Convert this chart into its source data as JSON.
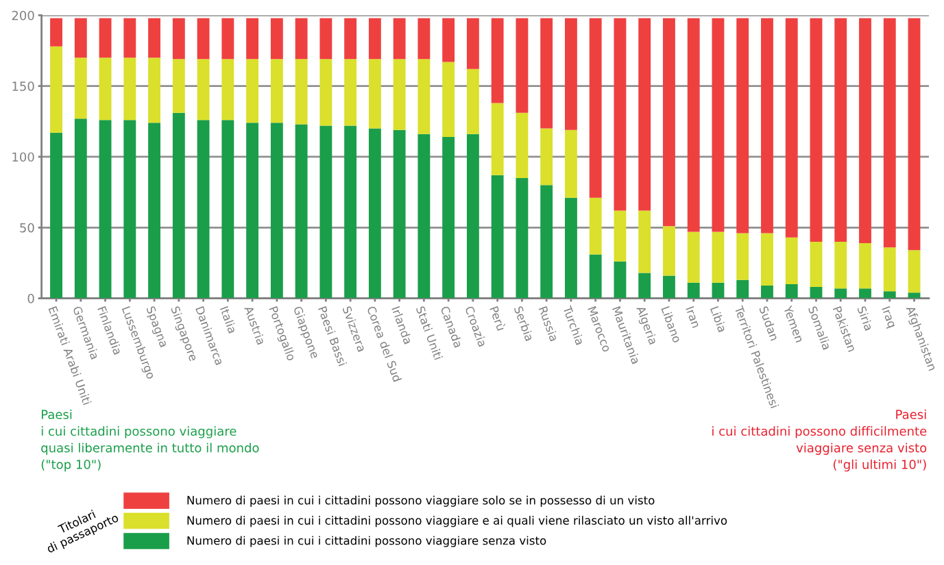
{
  "chart_data": {
    "type": "bar",
    "stacked": true,
    "categories": [
      "Emirati Arabi Uniti",
      "Germania",
      "Finlandia",
      "Lussemburgo",
      "Spagna",
      "Singapore",
      "Danimarca",
      "Italia",
      "Austria",
      "Portogallo",
      "Giappone",
      "Paesi Bassi",
      "Svizzera",
      "Corea del Sud",
      "Irlanda",
      "Stati Uniti",
      "Canada",
      "Croazia",
      "Perù",
      "Serbia",
      "Russia",
      "Turchia",
      "Marocco",
      "Mauritania",
      "Algeria",
      "Libano",
      "Iran",
      "Libia",
      "Territori Palestinesi",
      "Sudan",
      "Yemen",
      "Somalia",
      "Pakistan",
      "Siria",
      "Iraq",
      "Afghanistan"
    ],
    "series": [
      {
        "name": "Numero di paesi in cui i cittadini possono viaggiare senza visto",
        "color": "#1a9e4a",
        "values": [
          117,
          127,
          126,
          126,
          124,
          131,
          126,
          126,
          124,
          124,
          123,
          122,
          122,
          120,
          119,
          116,
          114,
          116,
          87,
          85,
          80,
          71,
          31,
          26,
          18,
          16,
          11,
          11,
          13,
          9,
          10,
          8,
          7,
          7,
          5,
          4
        ]
      },
      {
        "name": "Numero di paesi in cui i cittadini possono viaggiare e ai quali viene rilasciato un visto all'arrivo",
        "color": "#dae02b",
        "values": [
          61,
          43,
          44,
          44,
          46,
          38,
          43,
          43,
          45,
          45,
          46,
          47,
          47,
          49,
          50,
          53,
          53,
          46,
          51,
          46,
          40,
          48,
          40,
          36,
          44,
          35,
          36,
          36,
          33,
          37,
          33,
          32,
          33,
          32,
          31,
          30
        ]
      },
      {
        "name": "Numero di paesi in cui i cittadini possono viaggiare solo se in possesso di un visto",
        "color": "#ef4040",
        "values": [
          20,
          28,
          28,
          28,
          28,
          29,
          29,
          29,
          29,
          29,
          29,
          29,
          29,
          29,
          29,
          29,
          31,
          36,
          60,
          67,
          78,
          79,
          127,
          136,
          136,
          147,
          151,
          151,
          152,
          152,
          155,
          158,
          158,
          159,
          162,
          164
        ]
      }
    ],
    "ylim": [
      0,
      200
    ],
    "yticks": [
      0,
      50,
      100,
      150,
      200
    ],
    "grid": "y",
    "legend": "bottom",
    "legend_title": "Titolari\ndi passaporto",
    "annotations": [
      "Paesi\ni cui cittadini possono viaggiare\nquasi liberamente in tutto il mondo\n(\"top 10\")",
      "Paesi\ni cui cittadini possono difficilmente\nviaggiare senza visto\n(\"gli ultimi 10\")"
    ]
  }
}
